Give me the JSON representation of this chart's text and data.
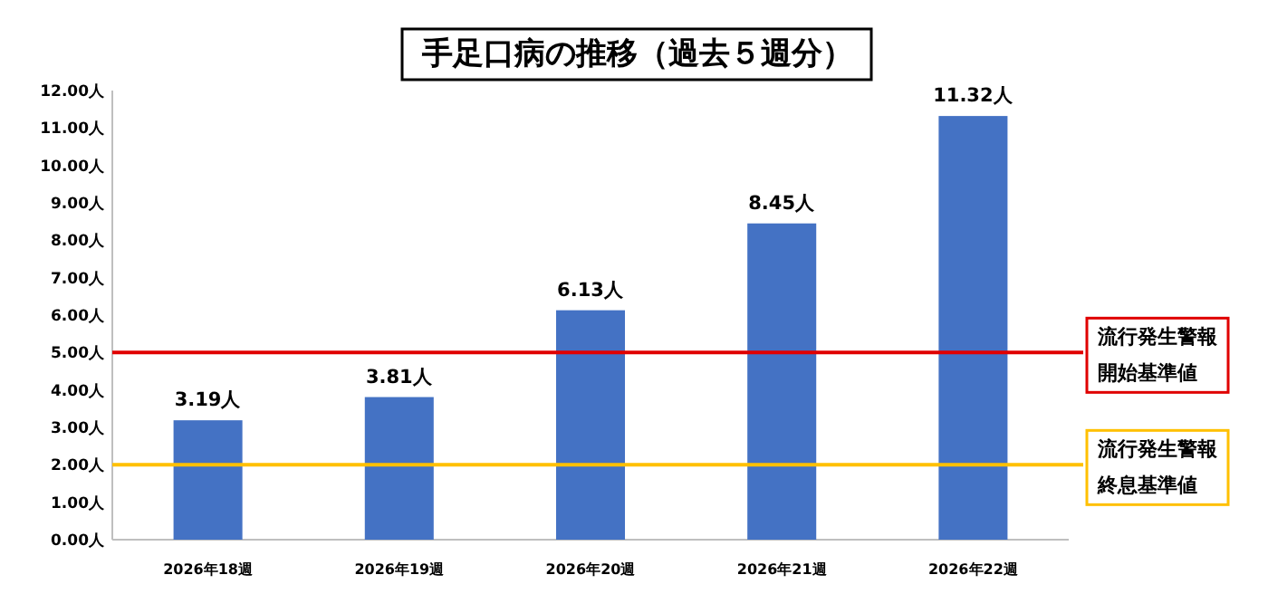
{
  "chart_data": {
    "type": "bar",
    "title": "手足口病の推移（過去５週分）",
    "categories": [
      "2026年18週",
      "2026年19週",
      "2026年20週",
      "2026年21週",
      "2026年22週"
    ],
    "values": [
      3.19,
      3.81,
      6.13,
      8.45,
      11.32
    ],
    "color": "#4472c4",
    "value_labels": [
      "3.19人",
      "3.81人",
      "6.13人",
      "8.45人",
      "11.32人"
    ],
    "ylim": [
      0,
      12
    ],
    "yticks": [
      {
        "value": 0,
        "label": "0.00人"
      },
      {
        "value": 1,
        "label": "1.00人"
      },
      {
        "value": 2,
        "label": "2.00人"
      },
      {
        "value": 3,
        "label": "3.00人"
      },
      {
        "value": 4,
        "label": "4.00人"
      },
      {
        "value": 5,
        "label": "5.00人"
      },
      {
        "value": 6,
        "label": "6.00人"
      },
      {
        "value": 7,
        "label": "7.00人"
      },
      {
        "value": 8,
        "label": "8.00人"
      },
      {
        "value": 9,
        "label": "9.00人"
      },
      {
        "value": 10,
        "label": "10.00人"
      },
      {
        "value": 11,
        "label": "11.00人"
      },
      {
        "value": 12,
        "label": "12.00人"
      }
    ],
    "ref_lines": [
      {
        "axis": "y",
        "value": 5,
        "label": "流行発生警報開始基準値",
        "color": "#e00000"
      },
      {
        "axis": "y",
        "value": 2,
        "label": "流行発生警報終息基準値",
        "color": "#ffc000"
      }
    ],
    "grid": false
  }
}
